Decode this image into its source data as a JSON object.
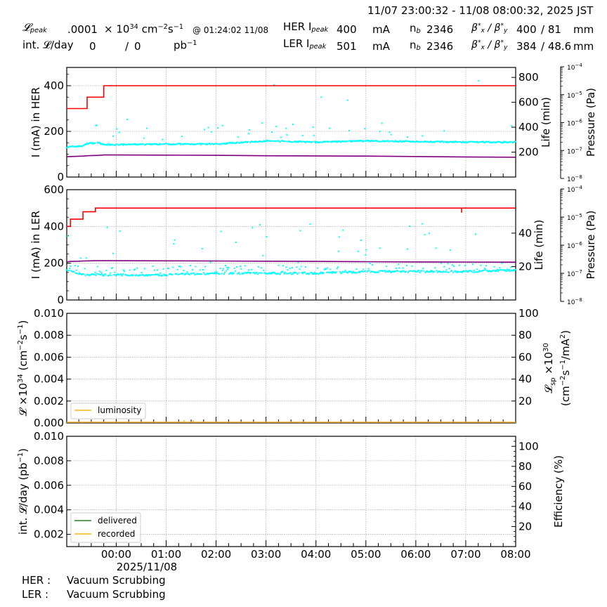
{
  "header": {
    "time_range": "11/07 23:00:32 - 11/08 08:00:32, 2025 JST",
    "lpeak_label": "𝓛",
    "lpeak_sub": "peak",
    "lpeak_value": ".0001",
    "lpeak_unit_prefix": "× 10",
    "lpeak_unit_exp": "34",
    "lpeak_unit_cm": " cm",
    "lpeak_unit_cm_exp": "−2",
    "lpeak_unit_s": "s",
    "lpeak_unit_s_exp": "−1",
    "lpeak_time": "@ 01:24:02 11/08",
    "intl_label": "int. 𝓛/day",
    "intl_delivered": "0",
    "intl_sep": "/",
    "intl_recorded": "0",
    "intl_unit": "pb",
    "intl_unit_exp": "−1",
    "her": {
      "label": "HER I",
      "sub": "peak",
      "ipeak": "400",
      "unit": "mA",
      "nb_label": "n",
      "nb_sub": "b",
      "nb": "2346",
      "beta_label": "β*x / β*y",
      "beta_x": "400",
      "beta_y": "/ 81",
      "beta_unit": "mm"
    },
    "ler": {
      "label": "LER I",
      "sub": "peak",
      "ipeak": "501",
      "unit": "mA",
      "nb_label": "n",
      "nb_sub": "b",
      "nb": "2346",
      "beta_label": "β*x / β*y",
      "beta_x": "384",
      "beta_y": "/ 48.6",
      "beta_unit": "mm"
    }
  },
  "footer": {
    "her_label": "HER :",
    "her_status": "Vacuum Scrubbing",
    "ler_label": "LER :",
    "ler_status": "Vacuum Scrubbing"
  },
  "colors": {
    "current": "#ff0000",
    "life": "#00ffff",
    "pressure": "#800080",
    "luminosity": "#ffb428",
    "delivered": "#2a7f2a",
    "recorded": "#ffb428",
    "grid": "#b0b0b0"
  },
  "chart_data": [
    {
      "type": "line",
      "title": "HER",
      "xlabel": "",
      "ylabel": "I (mA) in HER",
      "ylabel_right": "Life (min)",
      "ylabel_right2": "Pressure (Pa)",
      "ylim": [
        0,
        480
      ],
      "ylim_right": [
        0,
        880
      ],
      "ylim_right2_log": [
        1e-08,
        0.0001
      ],
      "yticks": [
        0,
        200,
        400
      ],
      "yticks_right": [
        200,
        400,
        600,
        800
      ],
      "yticks_right2": [
        "10^-8",
        "10^-7",
        "10^-6",
        "10^-5",
        "10^-4"
      ],
      "x": [
        "23:00",
        "23:20",
        "23:25",
        "23:40",
        "23:45",
        "00:00",
        "01:00",
        "02:00",
        "03:00",
        "04:00",
        "05:00",
        "06:00",
        "07:00",
        "08:00"
      ],
      "series": [
        {
          "name": "HER current (mA)",
          "axis": "left",
          "values": [
            300,
            300,
            350,
            350,
            400,
            400,
            400,
            400,
            400,
            400,
            400,
            400,
            400,
            400
          ]
        },
        {
          "name": "HER lifetime (min)",
          "axis": "right",
          "style": "scatter",
          "values": [
            240,
            250,
            270,
            275,
            260,
            260,
            265,
            265,
            290,
            280,
            290,
            285,
            280,
            280
          ]
        },
        {
          "name": "HER pressure (Pa)",
          "axis": "right2",
          "values": [
            5.5e-08,
            5.8e-08,
            6e-08,
            6.2e-08,
            6.4e-08,
            6.4e-08,
            6.3e-08,
            6.2e-08,
            6e-08,
            5.9e-08,
            5.8e-08,
            5.6e-08,
            5.4e-08,
            5.3e-08
          ]
        }
      ]
    },
    {
      "type": "line",
      "title": "LER",
      "ylabel": "I (mA) in LER",
      "ylabel_right": "Life (min)",
      "ylabel_right2": "Pressure (Pa)",
      "ylim": [
        0,
        600
      ],
      "ylim_right": [
        0,
        66
      ],
      "ylim_right2_log": [
        1e-08,
        0.0001
      ],
      "yticks": [
        0,
        200,
        400,
        600
      ],
      "yticks_right": [
        20,
        40
      ],
      "yticks_right2": [
        "10^-8",
        "10^-7",
        "10^-6",
        "10^-5",
        "10^-4"
      ],
      "x": [
        "23:00",
        "23:05",
        "23:15",
        "23:20",
        "23:35",
        "00:00",
        "01:00",
        "02:00",
        "03:00",
        "04:00",
        "05:00",
        "06:00",
        "07:00",
        "08:00"
      ],
      "series": [
        {
          "name": "LER current (mA)",
          "axis": "left",
          "values": [
            400,
            440,
            440,
            480,
            500,
            500,
            500,
            500,
            500,
            500,
            500,
            500,
            500,
            500
          ]
        },
        {
          "name": "LER lifetime (min)",
          "axis": "right",
          "style": "scatter",
          "values": [
            18,
            17,
            16,
            15,
            15,
            15,
            15,
            16,
            16,
            16,
            17,
            17,
            17,
            18
          ]
        },
        {
          "name": "LER pressure (Pa)",
          "axis": "right2",
          "values": [
            2.4e-07,
            2.5e-07,
            2.55e-07,
            2.6e-07,
            2.65e-07,
            2.65e-07,
            2.63e-07,
            2.6e-07,
            2.55e-07,
            2.5e-07,
            2.45e-07,
            2.4e-07,
            2.38e-07,
            2.35e-07
          ]
        }
      ]
    },
    {
      "type": "line",
      "ylabel": "𝓛 ×10^34 (cm^-2 s^-1)",
      "ylabel_right": "𝓛sp ×10^30 (cm^-2 s^-1 / mA^2)",
      "ylim": [
        0,
        0.01
      ],
      "ylim_right": [
        0,
        100
      ],
      "yticks": [
        0.0,
        0.002,
        0.004,
        0.006,
        0.008,
        0.01
      ],
      "yticks_right": [
        20,
        40,
        60,
        80,
        100
      ],
      "legend": [
        "luminosity"
      ],
      "legend_position": "lower left",
      "series": [
        {
          "name": "luminosity",
          "values": [
            0,
            0,
            0,
            0.0001,
            0,
            0,
            0,
            0,
            0,
            0
          ]
        }
      ]
    },
    {
      "type": "line",
      "ylabel": "int. 𝓛/day (pb^-1)",
      "ylabel_right": "Efficiency (%)",
      "ylim": [
        0.001,
        0.01
      ],
      "ylim_right": [
        0,
        110
      ],
      "yticks": [
        0.002,
        0.004,
        0.006,
        0.008,
        0.01
      ],
      "yticks_right": [
        20,
        40,
        60,
        80,
        100
      ],
      "legend": [
        "delivered",
        "recorded"
      ],
      "legend_position": "lower left",
      "xticks": [
        "00:00",
        "01:00",
        "02:00",
        "03:00",
        "04:00",
        "05:00",
        "06:00",
        "07:00",
        "08:00"
      ],
      "xdate": "2025/11/08",
      "series": [
        {
          "name": "delivered",
          "values": [
            0,
            0,
            0,
            0,
            0,
            0,
            0,
            0,
            0
          ]
        },
        {
          "name": "recorded",
          "values": [
            0,
            0,
            0,
            0,
            0,
            0,
            0,
            0,
            0
          ]
        }
      ]
    }
  ],
  "axes": {
    "p1": {
      "ylabel": "I (mA) in HER",
      "right_label": "Life (min)",
      "p_label": "Pressure (Pa)",
      "left_ticks": [
        "0",
        "200",
        "400"
      ],
      "right_ticks": [
        "200",
        "400",
        "600",
        "800"
      ]
    },
    "p2": {
      "ylabel": "I (mA) in LER",
      "right_label": "Life (min)",
      "p_label": "Pressure (Pa)",
      "left_ticks": [
        "0",
        "200",
        "400",
        "600"
      ],
      "right_ticks": [
        "20",
        "40"
      ]
    },
    "p3": {
      "left_ticks": [
        "0.000",
        "0.002",
        "0.004",
        "0.006",
        "0.008",
        "0.010"
      ],
      "right_ticks": [
        "20",
        "40",
        "60",
        "80",
        "100"
      ],
      "legend": "luminosity"
    },
    "p4": {
      "left_ticks": [
        "0.002",
        "0.004",
        "0.006",
        "0.008",
        "0.010"
      ],
      "right_ticks": [
        "20",
        "40",
        "60",
        "80",
        "100"
      ],
      "right_label": "Efficiency (%)",
      "legend_delivered": "delivered",
      "legend_recorded": "recorded"
    },
    "pressure_ticks": [
      "10",
      "10",
      "10",
      "10",
      "10"
    ],
    "pressure_exps": [
      "−8",
      "−7",
      "−6",
      "−5",
      "−4"
    ],
    "xticks": [
      "00:00",
      "01:00",
      "02:00",
      "03:00",
      "04:00",
      "05:00",
      "06:00",
      "07:00",
      "08:00"
    ],
    "xdate": "2025/11/08"
  }
}
